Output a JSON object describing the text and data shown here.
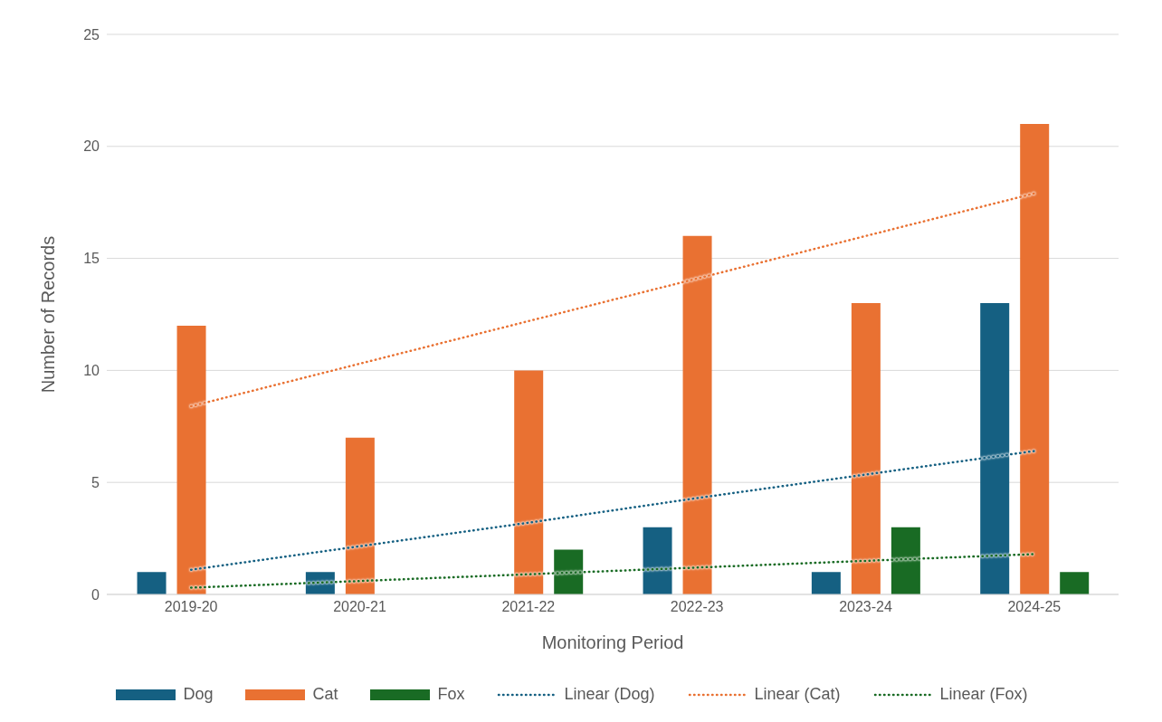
{
  "chart_data": {
    "type": "bar",
    "xlabel": "Monitoring Period",
    "ylabel": "Number of  Records",
    "categories": [
      "2019-20",
      "2020-21",
      "2021-22",
      "2022-23",
      "2023-24",
      "2024-25"
    ],
    "series": [
      {
        "name": "Dog",
        "color": "#156082",
        "values": [
          1,
          1,
          0,
          3,
          1,
          13
        ]
      },
      {
        "name": "Cat",
        "color": "#e97132",
        "values": [
          12,
          7,
          10,
          16,
          13,
          21
        ]
      },
      {
        "name": "Fox",
        "color": "#196b24",
        "values": [
          0,
          0,
          2,
          0,
          3,
          1
        ]
      },
      {
        "name": "Linear (Dog)",
        "type": "line",
        "line_style": "dotted",
        "color": "#156082",
        "values": [
          1.1,
          2.15,
          3.2,
          4.3,
          5.35,
          6.4
        ]
      },
      {
        "name": "Linear (Cat)",
        "type": "line",
        "line_style": "dotted",
        "color": "#e97132",
        "values": [
          8.4,
          10.3,
          12.2,
          14.1,
          16.0,
          17.9
        ]
      },
      {
        "name": "Linear (Fox)",
        "type": "line",
        "line_style": "dotted",
        "color": "#196b24",
        "values": [
          0.3,
          0.6,
          0.9,
          1.2,
          1.5,
          1.8
        ]
      }
    ],
    "ylim": [
      0,
      25
    ],
    "yticks": [
      0,
      5,
      10,
      15,
      20,
      25
    ],
    "grid": "y",
    "legend": "bottom",
    "marker": "none"
  }
}
